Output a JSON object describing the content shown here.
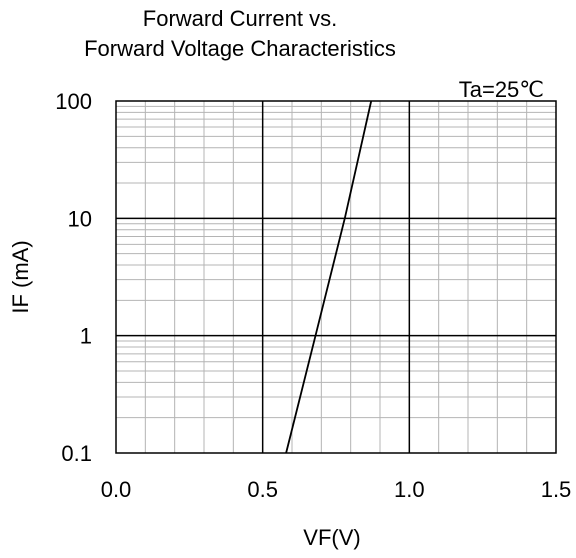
{
  "chart_data": {
    "type": "line",
    "title_line1": "Forward Current vs.",
    "title_line2": "Forward Voltage Characteristics",
    "xlabel": "VF(V)",
    "ylabel": "IF (mA)",
    "annotation": "Ta=25℃",
    "xlim": [
      0.0,
      1.5
    ],
    "ylim": [
      0.1,
      100
    ],
    "y_scale": "log",
    "grid": true,
    "x_ticks": [
      "0.0",
      "0.5",
      "1.0",
      "1.5"
    ],
    "y_ticks": [
      "0.1",
      "1",
      "10",
      "100"
    ],
    "series": [
      {
        "x": [
          0.58,
          0.68,
          0.78,
          0.87
        ],
        "y": [
          0.1,
          1,
          10,
          100
        ]
      }
    ]
  }
}
